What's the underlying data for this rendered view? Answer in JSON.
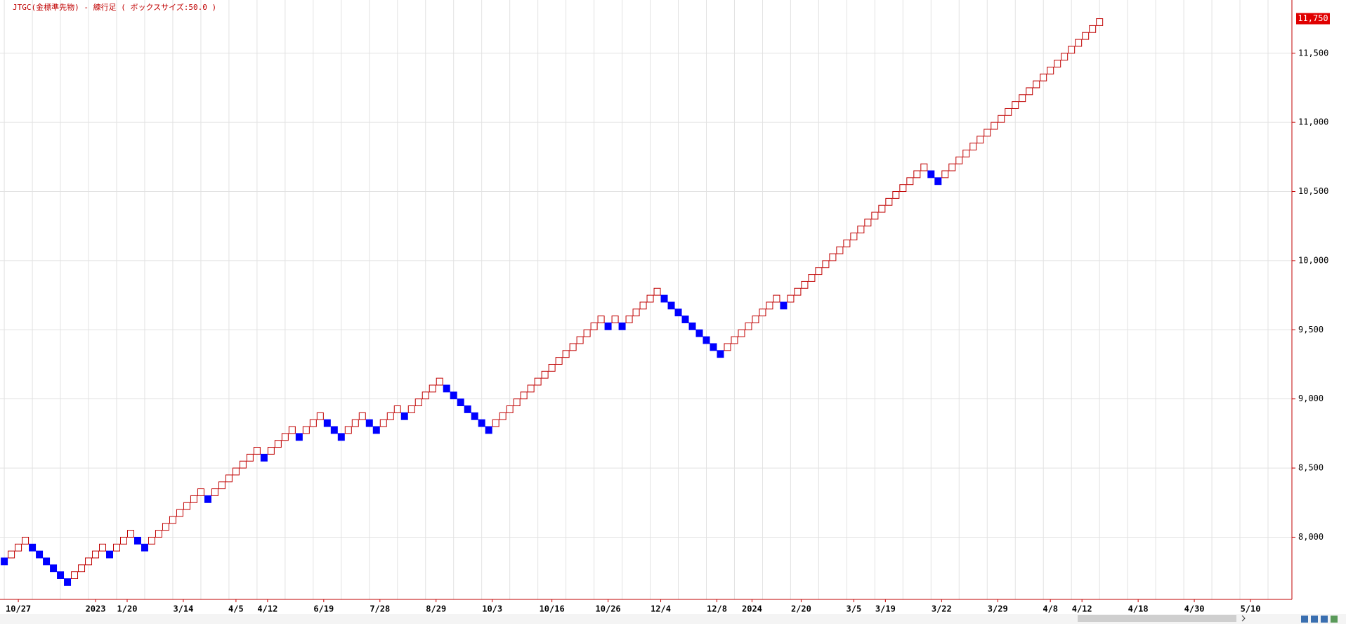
{
  "chart_data": {
    "type": "renko",
    "title": "JTGC(金標準先物) - 練行足 ( ボックスサイズ:50.0 )",
    "box_size": 50,
    "ylim": [
      7550,
      11885
    ],
    "yticks": [
      {
        "value": 8000,
        "label": "8,000"
      },
      {
        "value": 8500,
        "label": "8,500"
      },
      {
        "value": 9000,
        "label": "9,000"
      },
      {
        "value": 9500,
        "label": "9,500"
      },
      {
        "value": 10000,
        "label": "10,000"
      },
      {
        "value": 10500,
        "label": "10,500"
      },
      {
        "value": 11000,
        "label": "11,000"
      },
      {
        "value": 11500,
        "label": "11,500"
      }
    ],
    "xlim": [
      -0.61,
      183.4
    ],
    "xticks": [
      {
        "value": 2,
        "label": "10/27"
      },
      {
        "value": 13,
        "label": "2023"
      },
      {
        "value": 17.5,
        "label": "1/20"
      },
      {
        "value": 25.5,
        "label": "3/14"
      },
      {
        "value": 33,
        "label": "4/5"
      },
      {
        "value": 37.5,
        "label": "4/12"
      },
      {
        "value": 45.5,
        "label": "6/19"
      },
      {
        "value": 53.5,
        "label": "7/28"
      },
      {
        "value": 61.5,
        "label": "8/29"
      },
      {
        "value": 69.5,
        "label": "10/3"
      },
      {
        "value": 78,
        "label": "10/16"
      },
      {
        "value": 86,
        "label": "10/26"
      },
      {
        "value": 93.5,
        "label": "12/4"
      },
      {
        "value": 101.5,
        "label": "12/8"
      },
      {
        "value": 106.5,
        "label": "2024"
      },
      {
        "value": 113.5,
        "label": "2/20"
      },
      {
        "value": 121,
        "label": "3/5"
      },
      {
        "value": 125.5,
        "label": "3/19"
      },
      {
        "value": 133.5,
        "label": "3/22"
      },
      {
        "value": 141.5,
        "label": "3/29"
      },
      {
        "value": 149,
        "label": "4/8"
      },
      {
        "value": 153.5,
        "label": "4/12"
      },
      {
        "value": 161.5,
        "label": "4/18"
      },
      {
        "value": 169.5,
        "label": "4/30"
      },
      {
        "value": 177.5,
        "label": "5/10"
      }
    ],
    "grid": true,
    "x_grid_step": 4,
    "last_value": {
      "value": 11750,
      "label": "11,750"
    },
    "series": [
      {
        "color": "#c00000",
        "fill": "#ffffff",
        "values": [
          null,
          7900,
          7950,
          8000,
          null,
          null,
          null,
          null,
          null,
          null,
          7750,
          7800,
          7850,
          7900,
          7950,
          null,
          7950,
          8000,
          8050,
          null,
          null,
          8000,
          8050,
          8100,
          8150,
          8200,
          8250,
          8300,
          8350,
          null,
          8350,
          8400,
          8450,
          8500,
          8550,
          8600,
          8650,
          null,
          8650,
          8700,
          8750,
          8800,
          null,
          8800,
          8850,
          8900,
          null,
          null,
          null,
          8800,
          8850,
          8900,
          null,
          null,
          8850,
          8900,
          8950,
          null,
          8950,
          9000,
          9050,
          9100,
          9150,
          null,
          null,
          null,
          null,
          null,
          null,
          null,
          8850,
          8900,
          8950,
          9000,
          9050,
          9100,
          9150,
          9200,
          9250,
          9300,
          9350,
          9400,
          9450,
          9500,
          9550,
          9600,
          null,
          9600,
          null,
          9600,
          9650,
          9700,
          9750,
          9800,
          null,
          null,
          null,
          null,
          null,
          null,
          null,
          null,
          null,
          9400,
          9450,
          9500,
          9550,
          9600,
          9650,
          9700,
          9750,
          null,
          9750,
          9800,
          9850,
          9900,
          9950,
          10000,
          10050,
          10100,
          10150,
          10200,
          10250,
          10300,
          10350,
          10400,
          10450,
          10500,
          10550,
          10600,
          10650,
          10700,
          null,
          null,
          10650,
          10700,
          10750,
          10800,
          10850,
          10900,
          10950,
          11000,
          11050,
          11100,
          11150,
          11200,
          11250,
          11300,
          11350,
          11400,
          11450,
          11500,
          11550,
          11600,
          11650,
          11700,
          11750
        ]
      },
      {
        "color": "#0000ff",
        "fill": "#0000ff",
        "values": [
          7850,
          null,
          null,
          null,
          7950,
          7900,
          7850,
          7800,
          7750,
          7700,
          null,
          null,
          null,
          null,
          null,
          7900,
          null,
          null,
          null,
          8000,
          7950,
          null,
          null,
          null,
          null,
          null,
          null,
          null,
          null,
          8300,
          null,
          null,
          null,
          null,
          null,
          null,
          null,
          8600,
          null,
          null,
          null,
          null,
          8750,
          null,
          null,
          null,
          8850,
          8800,
          8750,
          null,
          null,
          null,
          8850,
          8800,
          null,
          null,
          null,
          8900,
          null,
          null,
          null,
          null,
          null,
          9100,
          9050,
          9000,
          8950,
          8900,
          8850,
          8800,
          null,
          null,
          null,
          null,
          null,
          null,
          null,
          null,
          null,
          null,
          null,
          null,
          null,
          null,
          null,
          null,
          9550,
          null,
          9550,
          null,
          null,
          null,
          null,
          null,
          9750,
          9700,
          9650,
          9600,
          9550,
          9500,
          9450,
          9400,
          9350,
          null,
          null,
          null,
          null,
          null,
          null,
          null,
          null,
          9700,
          null,
          null,
          null,
          null,
          null,
          null,
          null,
          null,
          null,
          null,
          null,
          null,
          null,
          null,
          null,
          null,
          null,
          null,
          null,
          null,
          10650,
          10600,
          null,
          null,
          null,
          null,
          null,
          null,
          null,
          null,
          null,
          null,
          null,
          null,
          null,
          null,
          null,
          null,
          null,
          null,
          null,
          null,
          null,
          null,
          null
        ]
      }
    ]
  }
}
